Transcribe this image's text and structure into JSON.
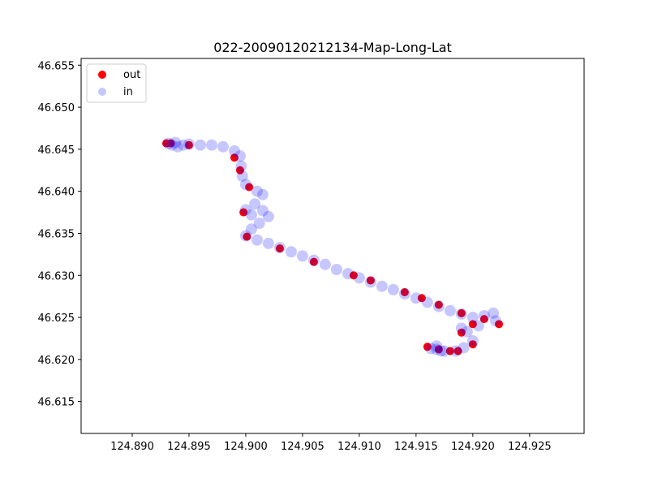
{
  "chart_data": {
    "type": "scatter",
    "title": "022-20090120212134-Map-Long-Lat",
    "xlabel": "",
    "ylabel": "",
    "xlim": [
      124.8855,
      124.9298
    ],
    "ylim": [
      46.6112,
      46.6558
    ],
    "x_ticks": [
      124.89,
      124.895,
      124.9,
      124.905,
      124.91,
      124.915,
      124.92,
      124.925
    ],
    "x_tick_labels": [
      "124.890",
      "124.895",
      "124.900",
      "124.905",
      "124.910",
      "124.915",
      "124.920",
      "124.925"
    ],
    "y_ticks": [
      46.615,
      46.62,
      46.625,
      46.63,
      46.635,
      46.64,
      46.645,
      46.65,
      46.655
    ],
    "y_tick_labels": [
      "46.615",
      "46.620",
      "46.625",
      "46.630",
      "46.635",
      "46.640",
      "46.645",
      "46.650",
      "46.655"
    ],
    "grid": false,
    "legend_position": "top-left",
    "series": [
      {
        "name": "out",
        "color": "#ff0000",
        "opacity": 1.0,
        "points": [
          [
            124.893,
            46.6457
          ],
          [
            124.8934,
            46.6457
          ],
          [
            124.895,
            46.6455
          ],
          [
            124.899,
            46.644
          ],
          [
            124.8995,
            46.6425
          ],
          [
            124.9003,
            46.6405
          ],
          [
            124.8998,
            46.6375
          ],
          [
            124.9001,
            46.6346
          ],
          [
            124.903,
            46.6332
          ],
          [
            124.906,
            46.6316
          ],
          [
            124.9095,
            46.63
          ],
          [
            124.911,
            46.6294
          ],
          [
            124.914,
            46.628
          ],
          [
            124.9155,
            46.6273
          ],
          [
            124.917,
            46.6265
          ],
          [
            124.919,
            46.6255
          ],
          [
            124.921,
            46.6248
          ],
          [
            124.9223,
            46.6242
          ],
          [
            124.92,
            46.6242
          ],
          [
            124.919,
            46.6232
          ],
          [
            124.916,
            46.6215
          ],
          [
            124.917,
            46.6212
          ],
          [
            124.918,
            46.621
          ],
          [
            124.9187,
            46.621
          ],
          [
            124.92,
            46.6218
          ]
        ]
      },
      {
        "name": "in",
        "color": "#0000ff",
        "opacity": 0.22,
        "points": [
          [
            124.8932,
            46.6457
          ],
          [
            124.8935,
            46.6455
          ],
          [
            124.8938,
            46.6458
          ],
          [
            124.894,
            46.6453
          ],
          [
            124.8945,
            46.6455
          ],
          [
            124.895,
            46.6456
          ],
          [
            124.896,
            46.6455
          ],
          [
            124.897,
            46.6455
          ],
          [
            124.898,
            46.6453
          ],
          [
            124.899,
            46.6448
          ],
          [
            124.8995,
            46.6442
          ],
          [
            124.8996,
            46.643
          ],
          [
            124.8997,
            46.6418
          ],
          [
            124.9,
            46.6408
          ],
          [
            124.901,
            46.64
          ],
          [
            124.9015,
            46.6396
          ],
          [
            124.9008,
            46.6385
          ],
          [
            124.9,
            46.6378
          ],
          [
            124.9005,
            46.6372
          ],
          [
            124.9015,
            46.6377
          ],
          [
            124.902,
            46.637
          ],
          [
            124.9012,
            46.6362
          ],
          [
            124.9005,
            46.6355
          ],
          [
            124.9,
            46.6347
          ],
          [
            124.901,
            46.6342
          ],
          [
            124.902,
            46.6338
          ],
          [
            124.903,
            46.6333
          ],
          [
            124.904,
            46.6328
          ],
          [
            124.905,
            46.6323
          ],
          [
            124.906,
            46.6318
          ],
          [
            124.907,
            46.6313
          ],
          [
            124.908,
            46.6307
          ],
          [
            124.909,
            46.6302
          ],
          [
            124.91,
            46.6297
          ],
          [
            124.911,
            46.6292
          ],
          [
            124.912,
            46.6287
          ],
          [
            124.913,
            46.6283
          ],
          [
            124.914,
            46.6278
          ],
          [
            124.915,
            46.6273
          ],
          [
            124.916,
            46.6268
          ],
          [
            124.917,
            46.6263
          ],
          [
            124.918,
            46.6258
          ],
          [
            124.919,
            46.6254
          ],
          [
            124.92,
            46.625
          ],
          [
            124.921,
            46.6252
          ],
          [
            124.9218,
            46.6255
          ],
          [
            124.922,
            46.6246
          ],
          [
            124.9205,
            46.624
          ],
          [
            124.9195,
            46.6233
          ],
          [
            124.919,
            46.6237
          ],
          [
            124.92,
            46.6222
          ],
          [
            124.9192,
            46.6214
          ],
          [
            124.9185,
            46.621
          ],
          [
            124.9175,
            46.621
          ],
          [
            124.9168,
            46.6212
          ],
          [
            124.9163,
            46.6213
          ],
          [
            124.9168,
            46.6216
          ],
          [
            124.9172,
            46.621
          ]
        ]
      }
    ]
  }
}
